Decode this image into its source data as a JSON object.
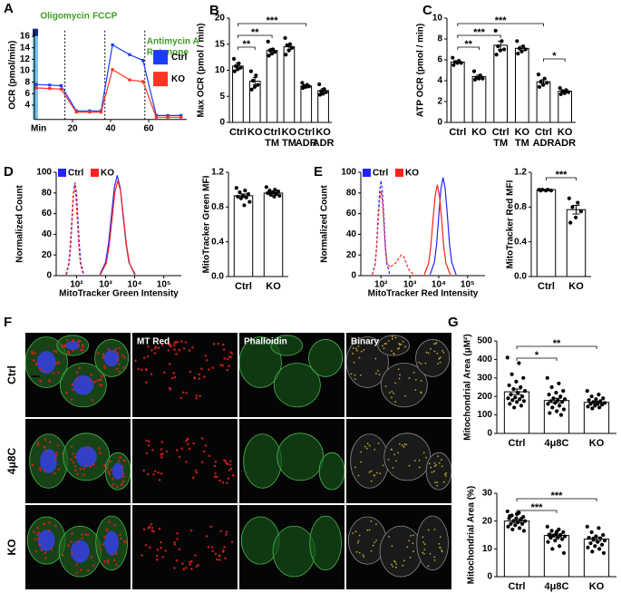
{
  "panel_labels": [
    "A",
    "B",
    "C",
    "D",
    "E",
    "F",
    "G"
  ],
  "chart_data": [
    {
      "type": "line",
      "ylabel": "OCR (pmol/min)",
      "xlabel": "Min",
      "x": [
        1,
        8,
        14,
        22,
        29,
        35,
        41,
        50,
        57,
        64,
        70,
        77
      ],
      "xlim": [
        0,
        80
      ],
      "xticks": [
        20,
        40,
        60
      ],
      "ylim": [
        1.5,
        17
      ],
      "yticks": [
        4,
        6,
        8,
        10,
        12,
        14,
        16
      ],
      "markers": true,
      "legend": "right",
      "injections": [
        {
          "x": 16,
          "labels": [
            "Oligomycin"
          ]
        },
        {
          "x": 37,
          "labels": [
            "FCCP"
          ]
        },
        {
          "x": 58,
          "labels": [
            "Antimycin A",
            "Rotenone"
          ]
        }
      ],
      "series": [
        {
          "name": "Ctrl",
          "color": "#1a3cff",
          "values": [
            7.6,
            7.5,
            7.4,
            3.0,
            3.0,
            3.0,
            14.5,
            12.8,
            11.8,
            2.2,
            2.2,
            2.2
          ]
        },
        {
          "name": "KO",
          "color": "#ff3322",
          "values": [
            7.0,
            6.9,
            6.8,
            2.8,
            2.8,
            2.8,
            10.2,
            8.4,
            8.1,
            1.9,
            1.9,
            1.9
          ]
        }
      ]
    },
    {
      "type": "bar",
      "ylabel": "Max OCR (pmol / min)",
      "color": "#ffffff",
      "edgecolor": "#000000",
      "categories": [
        [
          "Ctrl"
        ],
        [
          "KO"
        ],
        [
          "Ctrl",
          "TM"
        ],
        [
          "KO",
          "TM"
        ],
        [
          "Ctrl",
          "ADR"
        ],
        [
          "KO",
          "ADR"
        ]
      ],
      "values": [
        10.8,
        7.9,
        13.8,
        14.5,
        7.0,
        6.1
      ],
      "errors": [
        0.6,
        0.7,
        0.4,
        0.5,
        0.2,
        0.4
      ],
      "points": [
        [
          12.2,
          11.3,
          10.8,
          10.5,
          10.2,
          9.8
        ],
        [
          9.8,
          9.0,
          8.0,
          7.2,
          6.8,
          6.3
        ],
        [
          15.5,
          14.0,
          13.8,
          13.5,
          13.2,
          12.8
        ],
        [
          16.2,
          15.0,
          14.8,
          14.3,
          13.8,
          13.0
        ],
        [
          7.6,
          7.2,
          7.0,
          6.9,
          6.8,
          6.6
        ],
        [
          7.3,
          6.4,
          6.0,
          5.8,
          5.5,
          5.3
        ]
      ],
      "ylim": [
        0,
        20
      ],
      "yticks": [
        0,
        5,
        10,
        15,
        20
      ],
      "brackets": [
        {
          "label": "***",
          "from": 0,
          "to": 4
        },
        {
          "label": "**",
          "from": 0,
          "to": 2
        },
        {
          "label": "**",
          "from": 0,
          "to": 1
        }
      ]
    },
    {
      "type": "bar",
      "ylabel": "ATP OCR (pmol / min)",
      "color": "#ffffff",
      "edgecolor": "#000000",
      "categories": [
        [
          "Ctrl"
        ],
        [
          "KO"
        ],
        [
          "Ctrl",
          "TM"
        ],
        [
          "KO",
          "TM"
        ],
        [
          "Ctrl",
          "ADR"
        ],
        [
          "KO",
          "ADR"
        ]
      ],
      "values": [
        5.8,
        4.4,
        7.4,
        7.1,
        3.9,
        3.0
      ],
      "errors": [
        0.1,
        0.15,
        0.4,
        0.2,
        0.2,
        0.1
      ],
      "points": [
        [
          6.2,
          5.9,
          5.8,
          5.7,
          5.7,
          5.5
        ],
        [
          4.9,
          4.5,
          4.3,
          4.2,
          4.2,
          4.1
        ],
        [
          8.8,
          7.8,
          7.3,
          7.0,
          6.9,
          6.5
        ],
        [
          7.8,
          7.3,
          7.1,
          7.0,
          6.8,
          6.6
        ],
        [
          4.6,
          4.2,
          3.9,
          3.8,
          3.6,
          3.4
        ],
        [
          3.3,
          3.1,
          3.0,
          2.9,
          2.8,
          2.7
        ]
      ],
      "ylim": [
        0,
        10
      ],
      "yticks": [
        0,
        2,
        4,
        6,
        8,
        10
      ],
      "brackets": [
        {
          "label": "***",
          "from": 0,
          "to": 4
        },
        {
          "label": "***",
          "from": 0,
          "to": 2
        },
        {
          "label": "**",
          "from": 0,
          "to": 1
        },
        {
          "label": "*",
          "from": 4,
          "to": 5
        }
      ]
    },
    {
      "type": "line",
      "ylabel": "Normalized Count",
      "xlabel": "MitoTracker Green Intensity",
      "xscale": "log",
      "legend": "upper left",
      "xlim": [
        20,
        400000
      ],
      "xticks": [
        {
          "value": 100,
          "label": "10²"
        },
        {
          "value": 1000,
          "label": "10³"
        },
        {
          "value": 10000,
          "label": "10⁴"
        },
        {
          "value": 100000,
          "label": "10⁵"
        }
      ],
      "ylim": [
        0,
        100
      ],
      "yticks": [
        0,
        20,
        40,
        60,
        80,
        100
      ],
      "series": [
        {
          "color": "#2323ff",
          "style": "dashed",
          "x": [
            45,
            56,
            63,
            71,
            79,
            89,
            100,
            112,
            126,
            141,
            178
          ],
          "values": [
            1,
            12,
            29,
            54,
            79,
            90,
            79,
            54,
            29,
            12,
            1
          ]
        },
        {
          "color": "#ff2020",
          "style": "dashed",
          "x": [
            43,
            54,
            60,
            68,
            76,
            85,
            95,
            107,
            120,
            135,
            170
          ],
          "values": [
            1,
            12,
            28,
            53,
            77,
            88,
            77,
            53,
            28,
            12,
            1
          ]
        },
        {
          "name": "Ctrl",
          "color": "#2323ff",
          "x": [
            631,
            1000,
            1259,
            1585,
            1995,
            2512,
            3162,
            3981,
            5012,
            6310,
            10000
          ],
          "values": [
            1,
            13,
            31,
            58,
            85,
            97,
            85,
            58,
            31,
            13,
            1
          ]
        },
        {
          "name": "KO",
          "color": "#ff2020",
          "x": [
            661,
            1047,
            1318,
            1660,
            2089,
            2630,
            3311,
            4169,
            5248,
            6607,
            10471
          ],
          "values": [
            1,
            12,
            29,
            55,
            81,
            92,
            81,
            55,
            29,
            12,
            1
          ]
        }
      ]
    },
    {
      "type": "bar",
      "ylabel": "MitoTracker Green MFI",
      "color": "#ffffff",
      "edgecolor": "#000000",
      "categories": [
        "Ctrl",
        "KO"
      ],
      "values": [
        0.93,
        0.96
      ],
      "errors": [
        0.02,
        0.01
      ],
      "points": [
        [
          1.02,
          0.99,
          0.97,
          0.95,
          0.93,
          0.92,
          0.91,
          0.9,
          0.86,
          0.82
        ],
        [
          1.03,
          1.0,
          0.99,
          0.98,
          0.97,
          0.96,
          0.95,
          0.94,
          0.93,
          0.92
        ]
      ],
      "ylim": [
        0,
        1.2
      ],
      "yticks": [
        {
          "value": 0,
          "label": "0.0"
        },
        0.4,
        0.8,
        1.2
      ]
    },
    {
      "type": "line",
      "ylabel": "Normalized Count",
      "xlabel": "MitoTracker Red Intensity",
      "xscale": "log",
      "legend": "upper left",
      "xlim": [
        20,
        400000
      ],
      "xticks": [
        {
          "value": 100,
          "label": "10²"
        },
        {
          "value": 1000,
          "label": "10³"
        },
        {
          "value": 10000,
          "label": "10⁴"
        },
        {
          "value": 100000,
          "label": "10⁵"
        }
      ],
      "ylim": [
        0,
        100
      ],
      "yticks": [
        0,
        20,
        40,
        60,
        80,
        100
      ],
      "series": [
        {
          "color": "#2323ff",
          "style": "dashed",
          "x": [
            50,
            63,
            71,
            79,
            89,
            100,
            112,
            126,
            141,
            158,
            200
          ],
          "values": [
            1,
            12,
            30,
            56,
            81,
            92,
            81,
            56,
            30,
            12,
            1
          ]
        },
        {
          "color": "#ff2020",
          "style": "dashed",
          "x": [
            50,
            63,
            71,
            79,
            89,
            100,
            112,
            126,
            141,
            158,
            200,
            316,
            500,
            631,
            794,
            1000,
            1585
          ],
          "values": [
            1,
            11,
            27,
            50,
            72,
            82,
            72,
            50,
            27,
            14,
            8,
            12,
            20,
            18,
            10,
            4,
            0
          ]
        },
        {
          "name": "Ctrl",
          "color": "#2323ff",
          "x": [
            5012,
            7079,
            8414,
            10000,
            11885,
            14125,
            16788,
            19953,
            23714,
            28184,
            39811
          ],
          "values": [
            1,
            13,
            30,
            58,
            84,
            95,
            84,
            58,
            30,
            13,
            1
          ]
        },
        {
          "name": "KO",
          "color": "#ff2020",
          "x": [
            3162,
            4467,
            5309,
            6310,
            7499,
            8913,
            10593,
            12589,
            14962,
            17783,
            25119
          ],
          "values": [
            1,
            12,
            28,
            54,
            77,
            88,
            77,
            54,
            28,
            12,
            1
          ]
        }
      ]
    },
    {
      "type": "bar",
      "ylabel": "MitoTracker Red MFI",
      "color": "#ffffff",
      "edgecolor": "#000000",
      "categories": [
        "Ctrl",
        "KO"
      ],
      "values": [
        1.0,
        0.77
      ],
      "errors": [
        0.002,
        0.05
      ],
      "points": [
        [
          1.0,
          1.0,
          1.0,
          0.99,
          0.99,
          0.99
        ],
        [
          0.9,
          0.85,
          0.8,
          0.75,
          0.68,
          0.62
        ]
      ],
      "ylim": [
        0,
        1.2
      ],
      "yticks": [
        {
          "value": 0,
          "label": "0.0"
        },
        0.4,
        0.8,
        1.2
      ],
      "brackets": [
        {
          "label": "***",
          "from": 0,
          "to": 1
        }
      ]
    },
    {
      "type": "bar",
      "ylabel": "Mitochondrial Area (μM²)",
      "color": "#ffffff",
      "edgecolor": "#000000",
      "categories": [
        "Ctrl",
        "4μ8C",
        "KO"
      ],
      "values": [
        225,
        178,
        168
      ],
      "errors": [
        15,
        12,
        6
      ],
      "points": [
        [
          410,
          380,
          320,
          300,
          280,
          260,
          250,
          240,
          230,
          220,
          210,
          200,
          195,
          190,
          185,
          180,
          175,
          170,
          160,
          150,
          140
        ],
        [
          300,
          270,
          250,
          230,
          220,
          210,
          200,
          190,
          185,
          180,
          175,
          170,
          165,
          160,
          150,
          140,
          130,
          120,
          110,
          100
        ],
        [
          230,
          210,
          200,
          190,
          185,
          180,
          175,
          170,
          165,
          160,
          160,
          155,
          150,
          145,
          140,
          135
        ]
      ],
      "ylim": [
        0,
        500
      ],
      "yticks": [
        0,
        100,
        200,
        300,
        400,
        500
      ],
      "brackets": [
        {
          "label": "**",
          "from": 0,
          "to": 2
        },
        {
          "label": "*",
          "from": 0,
          "to": 1
        }
      ]
    },
    {
      "type": "bar",
      "ylabel": "Mitochondrial Area (%)",
      "color": "#ffffff",
      "edgecolor": "#000000",
      "categories": [
        "Ctrl",
        "4μ8C",
        "KO"
      ],
      "values": [
        20,
        14.8,
        13.5
      ],
      "errors": [
        0.5,
        0.5,
        0.7
      ],
      "points": [
        [
          23.5,
          23,
          22,
          21.5,
          21,
          21,
          20.5,
          20,
          20,
          19.5,
          19,
          19,
          18.5,
          18,
          17.5,
          17,
          16.5,
          22.5,
          21.8,
          20.8
        ],
        [
          18,
          17,
          16.5,
          16,
          15.5,
          15,
          15,
          14.8,
          14.5,
          14,
          14,
          13.5,
          13,
          12.5,
          11,
          10,
          8.5,
          16.2,
          15.2
        ],
        [
          18,
          17.5,
          16,
          15,
          14.5,
          14,
          13.8,
          13.5,
          13,
          12.5,
          12,
          11.5,
          11,
          10.5,
          10,
          9,
          8.5
        ]
      ],
      "ylim": [
        0,
        30
      ],
      "yticks": [
        0,
        10,
        20,
        30
      ],
      "brackets": [
        {
          "label": "***",
          "from": 0,
          "to": 2
        },
        {
          "label": "***",
          "from": 0,
          "to": 1
        }
      ]
    }
  ],
  "microscopy": {
    "columns": [
      "MT Red",
      "Phalloidin",
      "Binary"
    ],
    "rows": [
      "Ctrl",
      "4μ8C",
      "KO"
    ]
  }
}
